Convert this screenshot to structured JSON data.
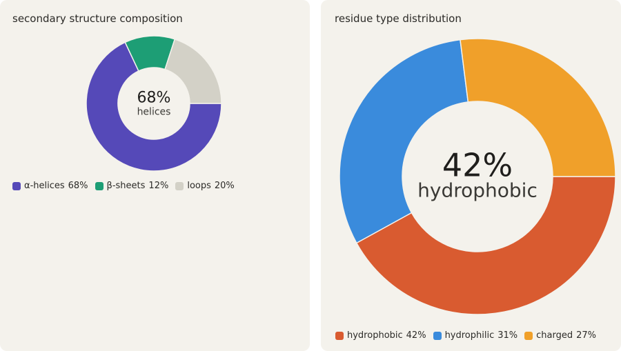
{
  "chart_data": [
    {
      "type": "donut",
      "title": "secondary structure composition",
      "categories": [
        "α-helices",
        "β-sheets",
        "loops"
      ],
      "values": [
        68,
        12,
        20
      ],
      "value_labels": [
        "68%",
        "12%",
        "20%"
      ],
      "colors": [
        "#5549b8",
        "#1d9e75",
        "#d3d1c7"
      ],
      "center_value": "68%",
      "center_label": "helices"
    },
    {
      "type": "donut",
      "title": "residue type distribution",
      "categories": [
        "hydrophobic",
        "hydrophilic",
        "charged"
      ],
      "values": [
        42,
        31,
        27
      ],
      "value_labels": [
        "42%",
        "31%",
        "27%"
      ],
      "colors": [
        "#d95b30",
        "#3a8bdc",
        "#f0a02a"
      ],
      "center_value": "42%",
      "center_label": "hydrophobic"
    }
  ]
}
